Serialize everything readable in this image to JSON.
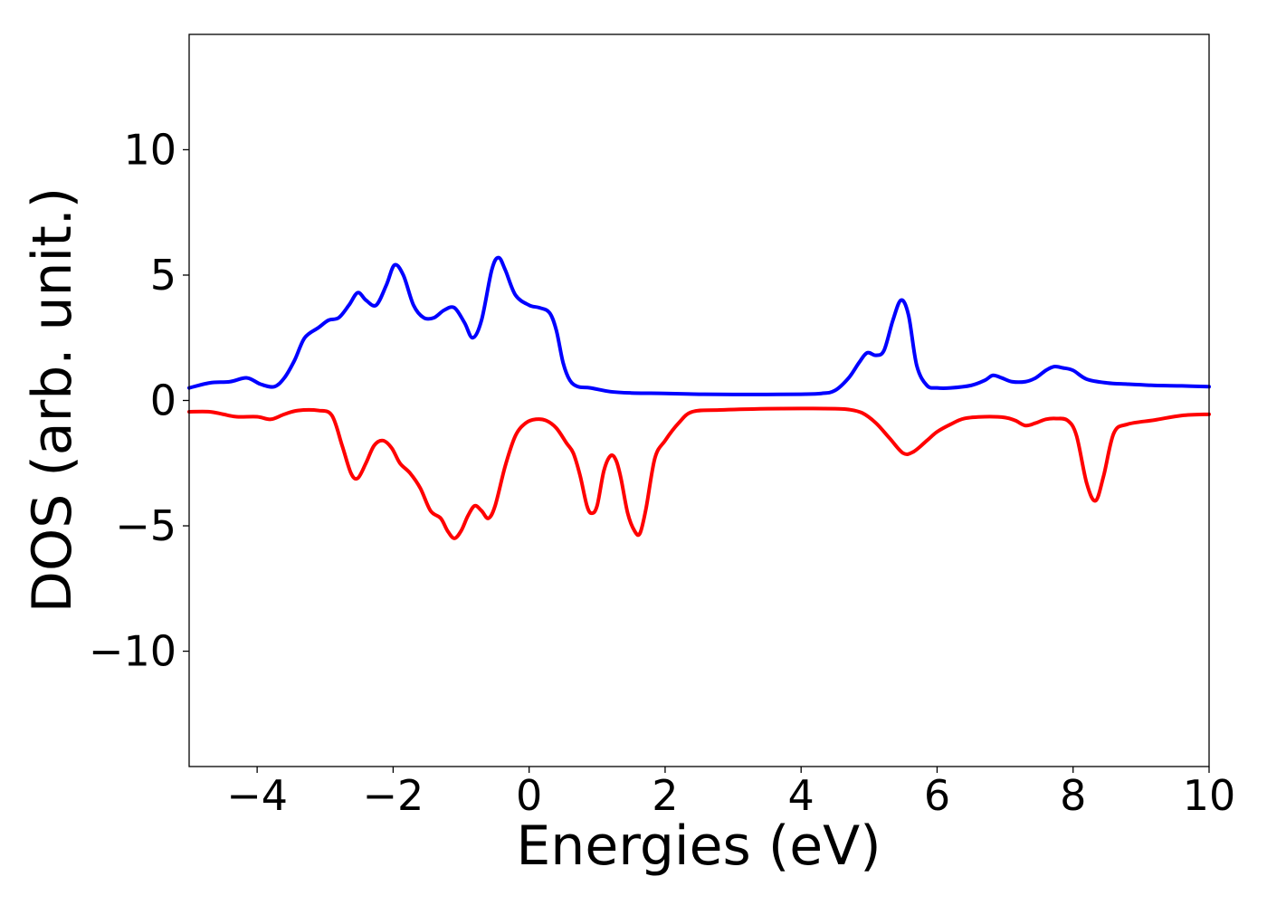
{
  "chart_data": {
    "type": "line",
    "title": "",
    "xlabel": "Energies (eV)",
    "ylabel": "DOS (arb. unit.)",
    "xlim": [
      -5,
      10
    ],
    "ylim": [
      -14.6,
      14.6
    ],
    "grid": false,
    "legend": null,
    "xticks": [
      -4,
      -2,
      0,
      2,
      4,
      6,
      8,
      10
    ],
    "xtick_labels": [
      "−4",
      "−2",
      "0",
      "2",
      "4",
      "6",
      "8",
      "10"
    ],
    "yticks": [
      -10,
      -5,
      0,
      5,
      10
    ],
    "ytick_labels": [
      "−10",
      "−5",
      "0",
      "5",
      "10"
    ],
    "series": [
      {
        "color": "#0000ff",
        "x": [
          -5.0,
          -4.7,
          -4.4,
          -4.15,
          -3.95,
          -3.75,
          -3.6,
          -3.45,
          -3.3,
          -3.1,
          -2.95,
          -2.8,
          -2.65,
          -2.52,
          -2.4,
          -2.25,
          -2.1,
          -1.98,
          -1.85,
          -1.7,
          -1.55,
          -1.4,
          -1.25,
          -1.1,
          -0.95,
          -0.83,
          -0.7,
          -0.55,
          -0.45,
          -0.35,
          -0.2,
          0.0,
          0.15,
          0.3,
          0.4,
          0.5,
          0.6,
          0.72,
          0.9,
          1.2,
          1.5,
          2.0,
          2.5,
          3.0,
          3.5,
          4.0,
          4.3,
          4.5,
          4.7,
          4.85,
          4.97,
          5.1,
          5.22,
          5.35,
          5.47,
          5.58,
          5.7,
          5.85,
          6.0,
          6.2,
          6.5,
          6.7,
          6.82,
          6.95,
          7.1,
          7.3,
          7.45,
          7.6,
          7.72,
          7.85,
          8.0,
          8.2,
          8.5,
          8.8,
          9.2,
          9.6,
          10.0
        ],
        "y": [
          0.5,
          0.7,
          0.75,
          0.9,
          0.65,
          0.55,
          0.9,
          1.6,
          2.5,
          2.9,
          3.2,
          3.3,
          3.8,
          4.3,
          4.0,
          3.8,
          4.6,
          5.4,
          5.0,
          3.8,
          3.3,
          3.3,
          3.6,
          3.7,
          3.1,
          2.5,
          3.2,
          5.2,
          5.7,
          5.2,
          4.2,
          3.8,
          3.7,
          3.5,
          2.8,
          1.5,
          0.8,
          0.55,
          0.5,
          0.35,
          0.3,
          0.28,
          0.25,
          0.24,
          0.24,
          0.25,
          0.28,
          0.4,
          0.9,
          1.5,
          1.9,
          1.8,
          2.0,
          3.2,
          4.0,
          3.4,
          1.4,
          0.6,
          0.5,
          0.5,
          0.6,
          0.8,
          1.0,
          0.9,
          0.75,
          0.75,
          0.9,
          1.2,
          1.35,
          1.3,
          1.2,
          0.85,
          0.7,
          0.65,
          0.6,
          0.58,
          0.55
        ]
      },
      {
        "color": "#ff0000",
        "x": [
          -5.0,
          -4.7,
          -4.5,
          -4.3,
          -4.0,
          -3.8,
          -3.6,
          -3.4,
          -3.1,
          -2.9,
          -2.75,
          -2.62,
          -2.52,
          -2.4,
          -2.28,
          -2.15,
          -2.02,
          -1.9,
          -1.75,
          -1.6,
          -1.45,
          -1.3,
          -1.2,
          -1.1,
          -1.0,
          -0.9,
          -0.8,
          -0.7,
          -0.6,
          -0.5,
          -0.35,
          -0.2,
          -0.05,
          0.1,
          0.25,
          0.4,
          0.55,
          0.65,
          0.75,
          0.85,
          0.92,
          1.0,
          1.1,
          1.2,
          1.28,
          1.35,
          1.45,
          1.55,
          1.63,
          1.72,
          1.85,
          2.0,
          2.2,
          2.4,
          2.8,
          3.5,
          4.0,
          4.5,
          4.7,
          4.9,
          5.1,
          5.3,
          5.5,
          5.65,
          5.85,
          6.0,
          6.2,
          6.4,
          6.7,
          7.0,
          7.15,
          7.3,
          7.45,
          7.6,
          7.75,
          7.92,
          8.05,
          8.2,
          8.33,
          8.45,
          8.6,
          8.8,
          9.2,
          9.6,
          10.0
        ],
        "y": [
          -0.45,
          -0.45,
          -0.55,
          -0.65,
          -0.65,
          -0.75,
          -0.55,
          -0.4,
          -0.4,
          -0.6,
          -1.8,
          -2.9,
          -3.1,
          -2.5,
          -1.8,
          -1.6,
          -1.9,
          -2.5,
          -2.9,
          -3.5,
          -4.4,
          -4.7,
          -5.2,
          -5.5,
          -5.2,
          -4.6,
          -4.2,
          -4.4,
          -4.7,
          -4.2,
          -2.6,
          -1.4,
          -0.9,
          -0.75,
          -0.8,
          -1.1,
          -1.7,
          -2.1,
          -3.0,
          -4.2,
          -4.5,
          -4.2,
          -2.8,
          -2.2,
          -2.4,
          -3.1,
          -4.5,
          -5.2,
          -5.3,
          -4.3,
          -2.3,
          -1.6,
          -0.9,
          -0.45,
          -0.38,
          -0.33,
          -0.32,
          -0.33,
          -0.36,
          -0.5,
          -0.9,
          -1.5,
          -2.1,
          -2.05,
          -1.6,
          -1.25,
          -0.95,
          -0.72,
          -0.65,
          -0.68,
          -0.8,
          -1.0,
          -0.9,
          -0.75,
          -0.72,
          -0.8,
          -1.4,
          -3.3,
          -4.0,
          -3.0,
          -1.3,
          -0.95,
          -0.78,
          -0.6,
          -0.55
        ]
      }
    ]
  }
}
